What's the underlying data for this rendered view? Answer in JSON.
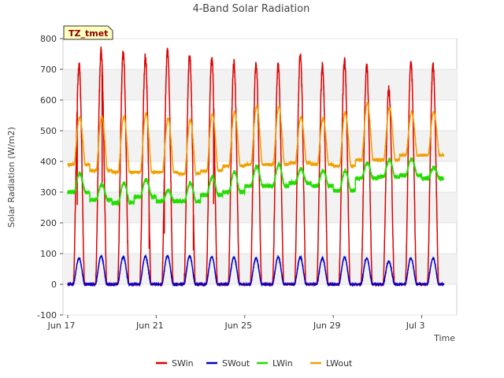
{
  "chart_data": {
    "type": "line",
    "title": "4-Band Solar Radiation",
    "xlabel": "Time",
    "ylabel": "Solar Radiation (W/m2)",
    "ylim": [
      -100,
      800
    ],
    "yticks": [
      -100,
      0,
      100,
      200,
      300,
      400,
      500,
      600,
      700,
      800
    ],
    "x_start_label": "Jun 17",
    "xticks": [
      {
        "day": 0,
        "label": "Jun 17"
      },
      {
        "day": 4,
        "label": "Jun 21"
      },
      {
        "day": 8,
        "label": "Jun 25"
      },
      {
        "day": 12,
        "label": "Jun 29"
      },
      {
        "day": 16,
        "label": "Jul 3"
      }
    ],
    "xlim_days": [
      0,
      18
    ],
    "legend_position": "bottom",
    "tz_label": "TZ_tmet",
    "series": [
      {
        "name": "SWin",
        "color": "#dd0000",
        "kind": "sw",
        "peaks": [
          715,
          760,
          755,
          740,
          760,
          745,
          735,
          720,
          715,
          715,
          745,
          710,
          730,
          710,
          635,
          720,
          710
        ]
      },
      {
        "name": "SWout",
        "color": "#0000cc",
        "kind": "sw",
        "peaks": [
          85,
          92,
          90,
          90,
          93,
          92,
          90,
          88,
          85,
          88,
          88,
          85,
          88,
          85,
          75,
          85,
          85
        ]
      },
      {
        "name": "LWin",
        "color": "#22dd00",
        "kind": "lw",
        "lows": [
          300,
          275,
          265,
          285,
          270,
          270,
          290,
          300,
          320,
          320,
          330,
          320,
          305,
          345,
          350,
          355,
          345
        ],
        "highs": [
          360,
          325,
          330,
          340,
          305,
          330,
          350,
          365,
          385,
          390,
          375,
          370,
          370,
          395,
          405,
          410,
          380
        ]
      },
      {
        "name": "LWout",
        "color": "#f0a000",
        "kind": "lw",
        "lows": [
          390,
          370,
          365,
          365,
          365,
          360,
          370,
          385,
          390,
          390,
          395,
          390,
          385,
          405,
          405,
          420,
          420
        ],
        "highs": [
          545,
          545,
          545,
          555,
          540,
          535,
          555,
          560,
          580,
          580,
          545,
          540,
          560,
          590,
          575,
          560,
          560
        ]
      }
    ]
  }
}
